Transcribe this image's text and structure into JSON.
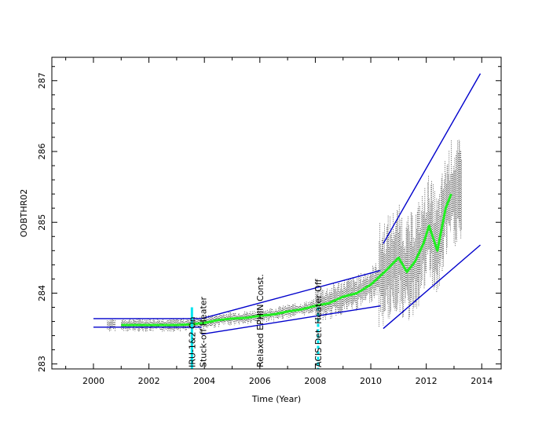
{
  "chart_data": {
    "type": "scatter",
    "title": "",
    "xlabel": "Time (Year)",
    "ylabel": "OOBTHR02",
    "xlim": [
      1998.5,
      2014.7
    ],
    "ylim": [
      282.93,
      287.33
    ],
    "x_ticks": [
      2000,
      2002,
      2004,
      2006,
      2008,
      2010,
      2012,
      2014
    ],
    "x_tick_labels": [
      "2000",
      "2002",
      "2004",
      "2006",
      "2008",
      "2010",
      "2012",
      "2014"
    ],
    "y_ticks": [
      283,
      284,
      285,
      286,
      287
    ],
    "y_tick_labels": [
      "283",
      "284",
      "285",
      "286",
      "287"
    ],
    "grid": false,
    "colors": {
      "points": "#000000",
      "smooth": "#22ee22",
      "envelope": "#0000cc",
      "event_marker": "#00e5ee"
    },
    "events": [
      {
        "x": 2003.55,
        "label": "IRU-1&2 On"
      },
      {
        "x": 2003.95,
        "label": "Stuck-off Heater"
      },
      {
        "x": 2006.0,
        "label": "Relaxed EPHIN Const."
      },
      {
        "x": 2008.1,
        "label": "ACIS Det. Heater Off"
      }
    ],
    "series": [
      {
        "name": "",
        "role": "smoothed-average",
        "x": [
          2001.0,
          2002.0,
          2003.0,
          2003.5,
          2004.0,
          2004.5,
          2005.0,
          2005.5,
          2006.0,
          2006.5,
          2007.0,
          2007.5,
          2008.0,
          2008.5,
          2009.0,
          2009.5,
          2010.0,
          2010.5,
          2011.0,
          2011.3,
          2011.6,
          2011.9,
          2012.1,
          2012.4,
          2012.7,
          2012.9
        ],
        "y": [
          283.55,
          283.55,
          283.55,
          283.56,
          283.58,
          283.62,
          283.64,
          283.65,
          283.68,
          283.7,
          283.74,
          283.77,
          283.82,
          283.86,
          283.95,
          284.0,
          284.12,
          284.3,
          284.5,
          284.3,
          284.45,
          284.7,
          284.95,
          284.6,
          285.2,
          285.4
        ]
      },
      {
        "name": "",
        "role": "envelope-early-upper",
        "x": [
          2000.0,
          2003.9
        ],
        "y": [
          283.64,
          283.64
        ]
      },
      {
        "name": "",
        "role": "envelope-early-lower",
        "x": [
          2000.0,
          2003.9
        ],
        "y": [
          283.52,
          283.52
        ]
      },
      {
        "name": "",
        "role": "envelope-mid-upper",
        "x": [
          2003.9,
          2010.35
        ],
        "y": [
          283.64,
          284.32
        ]
      },
      {
        "name": "",
        "role": "envelope-mid-lower",
        "x": [
          2003.9,
          2010.35
        ],
        "y": [
          283.42,
          283.82
        ]
      },
      {
        "name": "",
        "role": "envelope-late-upper",
        "x": [
          2010.45,
          2013.95
        ],
        "y": [
          284.7,
          287.1
        ]
      },
      {
        "name": "",
        "role": "envelope-late-lower",
        "x": [
          2010.45,
          2013.95
        ],
        "y": [
          283.5,
          284.68
        ]
      }
    ]
  }
}
